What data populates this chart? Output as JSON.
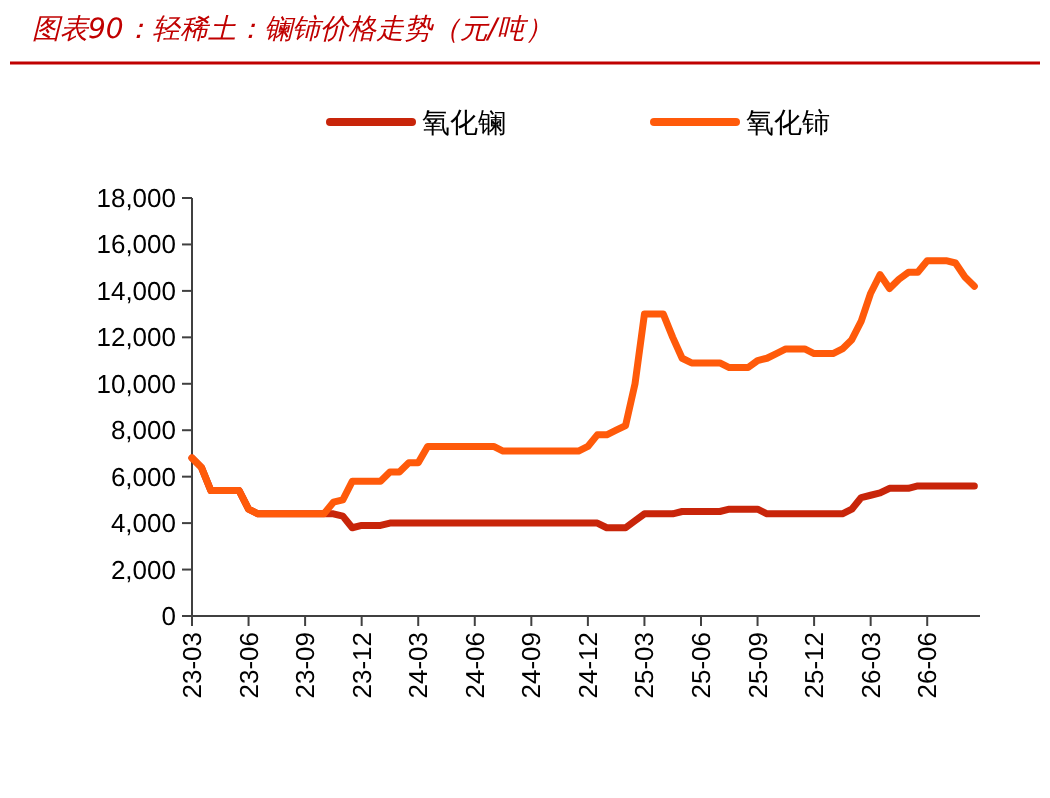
{
  "chart_data": {
    "type": "line",
    "title": "图表90：轻稀土：镧铈价格走势（元/吨）",
    "legend": "top",
    "marker": "none",
    "line_style": "solid",
    "grid": false,
    "categories": [
      "23-03",
      null,
      null,
      null,
      null,
      null,
      "23-06",
      null,
      null,
      null,
      null,
      null,
      "23-09",
      null,
      null,
      null,
      null,
      null,
      "23-12",
      null,
      null,
      null,
      null,
      null,
      "24-03",
      null,
      null,
      null,
      null,
      null,
      "24-06",
      null,
      null,
      null,
      null,
      null,
      "24-09",
      null,
      null,
      null,
      null,
      null,
      "24-12",
      null,
      null,
      null,
      null,
      null,
      "25-03",
      null,
      null,
      null,
      null,
      null,
      "25-06",
      null,
      null,
      null,
      null,
      null,
      "25-09",
      null,
      null,
      null,
      null,
      null,
      "25-12",
      null,
      null,
      null,
      null,
      null,
      "26-03",
      null,
      null,
      null,
      null,
      null,
      "26-06",
      null,
      null,
      null,
      null,
      null
    ],
    "ylim": [
      0,
      18000
    ],
    "yticks": [
      {
        "value": 0,
        "label": "0"
      },
      {
        "value": 2000,
        "label": "2,000"
      },
      {
        "value": 4000,
        "label": "4,000"
      },
      {
        "value": 6000,
        "label": "6,000"
      },
      {
        "value": 8000,
        "label": "8,000"
      },
      {
        "value": 10000,
        "label": "10,000"
      },
      {
        "value": 12000,
        "label": "12,000"
      },
      {
        "value": 14000,
        "label": "14,000"
      },
      {
        "value": 16000,
        "label": "16,000"
      },
      {
        "value": 18000,
        "label": "18,000"
      }
    ],
    "series": [
      {
        "name": "氧化镧",
        "color": "#c8250a",
        "values": [
          6800,
          6400,
          5400,
          5400,
          5400,
          5400,
          4600,
          4400,
          4400,
          4400,
          4400,
          4400,
          4400,
          4400,
          4400,
          4400,
          4300,
          3800,
          3900,
          3900,
          3900,
          4000,
          4000,
          4000,
          4000,
          4000,
          4000,
          4000,
          4000,
          4000,
          4000,
          4000,
          4000,
          4000,
          4000,
          4000,
          4000,
          4000,
          4000,
          4000,
          4000,
          4000,
          4000,
          4000,
          3800,
          3800,
          3800,
          4100,
          4400,
          4400,
          4400,
          4400,
          4500,
          4500,
          4500,
          4500,
          4500,
          4600,
          4600,
          4600,
          4600,
          4400,
          4400,
          4400,
          4400,
          4400,
          4400,
          4400,
          4400,
          4400,
          4600,
          5100,
          5200,
          5300,
          5500,
          5500,
          5500,
          5600,
          5600,
          5600,
          5600,
          5600,
          5600,
          5600
        ]
      },
      {
        "name": "氧化铈",
        "color": "#ff5a0a",
        "values": [
          6800,
          6400,
          5400,
          5400,
          5400,
          5400,
          4600,
          4400,
          4400,
          4400,
          4400,
          4400,
          4400,
          4400,
          4400,
          4900,
          5000,
          5800,
          5800,
          5800,
          5800,
          6200,
          6200,
          6600,
          6600,
          7300,
          7300,
          7300,
          7300,
          7300,
          7300,
          7300,
          7300,
          7100,
          7100,
          7100,
          7100,
          7100,
          7100,
          7100,
          7100,
          7100,
          7300,
          7800,
          7800,
          8000,
          8200,
          10000,
          13000,
          13000,
          13000,
          12000,
          11100,
          10900,
          10900,
          10900,
          10900,
          10700,
          10700,
          10700,
          11000,
          11100,
          11300,
          11500,
          11500,
          11500,
          11300,
          11300,
          11300,
          11500,
          11900,
          12700,
          13900,
          14700,
          14100,
          14500,
          14800,
          14800,
          15300,
          15300,
          15300,
          15200,
          14600,
          14200
        ]
      }
    ]
  }
}
